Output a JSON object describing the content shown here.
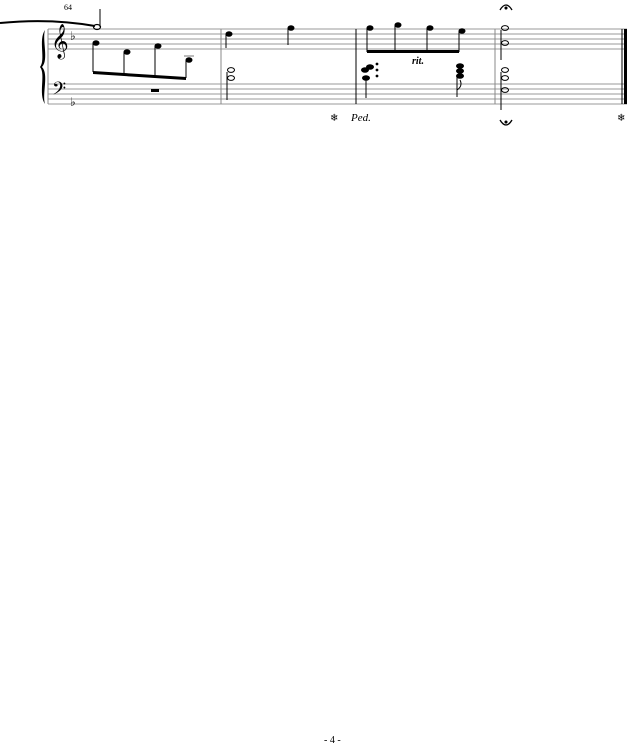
{
  "score": {
    "measure_number": "64",
    "tempo_marking": "rit.",
    "pedal_marking": "Ped.",
    "pedal_release_symbol": "❄",
    "clefs": [
      "treble",
      "bass"
    ],
    "key_signature": "1 flat",
    "end": "final barline"
  },
  "footer": {
    "page_number": "- 4 -"
  }
}
